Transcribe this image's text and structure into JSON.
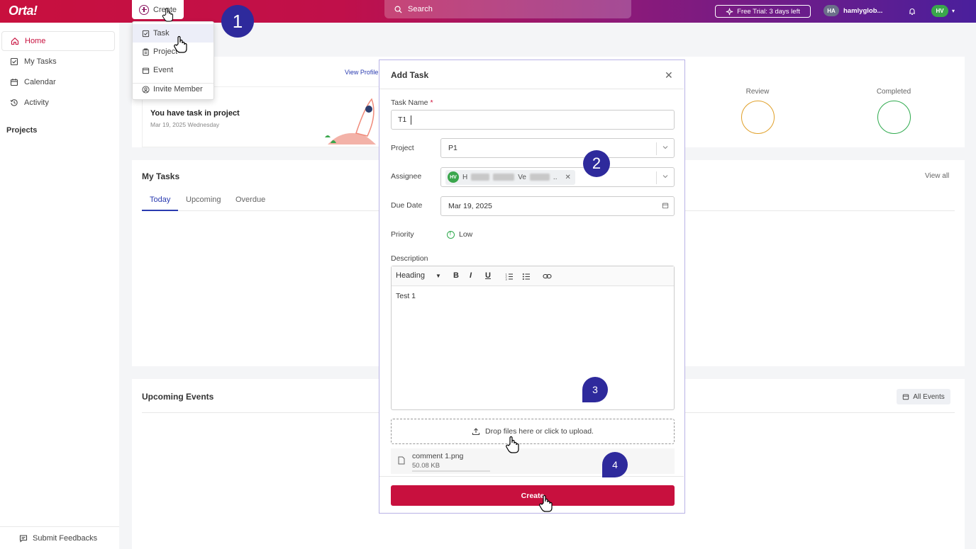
{
  "topbar": {
    "logo": "Orta!",
    "create_label": "Create",
    "search_placeholder": "Search",
    "trial_label": "Free Trial: 3 days left",
    "workspace_initials": "HA",
    "workspace_name": "hamlyglob...",
    "user_initials": "HV",
    "colors": {
      "primary": "#c8103e",
      "accent": "#2a3bb0",
      "gradient_end": "#4a1f9c"
    }
  },
  "sidebar": {
    "items": [
      {
        "label": "Home",
        "icon": "home-icon",
        "active": true
      },
      {
        "label": "My Tasks",
        "icon": "checkbox-icon"
      },
      {
        "label": "Calendar",
        "icon": "calendar-icon"
      },
      {
        "label": "Activity",
        "icon": "history-icon"
      }
    ],
    "projects_heading": "Projects",
    "feedback_label": "Submit Feedbacks"
  },
  "create_menu": {
    "items": [
      {
        "label": "Task",
        "icon": "checkbox-icon"
      },
      {
        "label": "Project",
        "icon": "clipboard-icon"
      },
      {
        "label": "Event",
        "icon": "calendar-icon"
      },
      {
        "label": "Invite Member",
        "icon": "user-add-icon"
      }
    ]
  },
  "dashboard": {
    "view_profile": "View Profile",
    "project_notice": "You have task in project",
    "project_date": "Mar 19, 2025 Wednesday",
    "review_label": "Review",
    "completed_label": "Completed",
    "my_tasks_title": "My Tasks",
    "view_all": "View all",
    "tabs": [
      "Today",
      "Upcoming",
      "Overdue"
    ],
    "upcoming_events_title": "Upcoming Events",
    "all_events": "All Events"
  },
  "modal": {
    "title": "Add Task",
    "task_name_label": "Task Name",
    "required_mark": "*",
    "task_name_value": "T1",
    "project_label": "Project",
    "project_value": "P1",
    "assignee_label": "Assignee",
    "assignee_initials": "HV",
    "assignee_name_start": "H",
    "assignee_name_mid": "Ve",
    "assignee_name_end": "..",
    "due_date_label": "Due Date",
    "due_date_value": "Mar 19, 2025",
    "priority_label": "Priority",
    "priority_value": "Low",
    "description_label": "Description",
    "toolbar": {
      "heading": "Heading",
      "bold": "B",
      "italic": "I",
      "underline": "U"
    },
    "description_text": "Test 1",
    "upload_label": "Drop files here or click to upload.",
    "file_name": "comment 1.png",
    "file_size": "50.08 KB",
    "create_button": "Create"
  },
  "steps": [
    "1",
    "2",
    "3",
    "4"
  ]
}
